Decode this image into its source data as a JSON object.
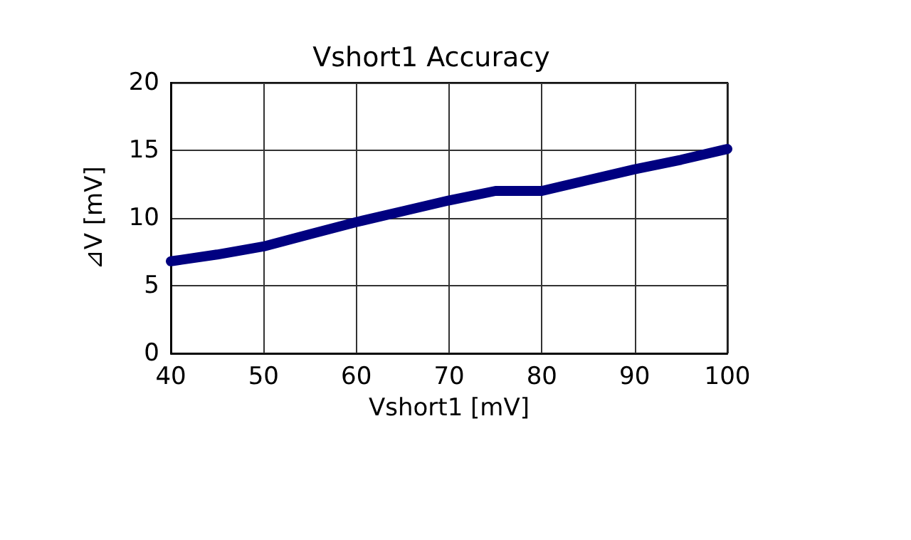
{
  "chart_data": {
    "type": "line",
    "title": "Vshort1 Accuracy",
    "xlabel": "Vshort1 [mV]",
    "ylabel": "⊿V [mV]",
    "x": [
      40,
      45,
      50,
      55,
      60,
      65,
      70,
      75,
      80,
      85,
      90,
      95,
      100
    ],
    "series": [
      {
        "color": "#000080",
        "values": [
          6.8,
          7.3,
          7.9,
          8.8,
          9.7,
          10.5,
          11.3,
          12.0,
          12.0,
          12.8,
          13.6,
          14.3,
          15.1
        ]
      }
    ],
    "xlim": [
      40,
      100
    ],
    "xticks": [
      40,
      50,
      60,
      70,
      80,
      90,
      100
    ],
    "ylim": [
      0,
      20
    ],
    "yticks": [
      0,
      5,
      10,
      15,
      20
    ],
    "grid": true,
    "line_style": "solid"
  }
}
